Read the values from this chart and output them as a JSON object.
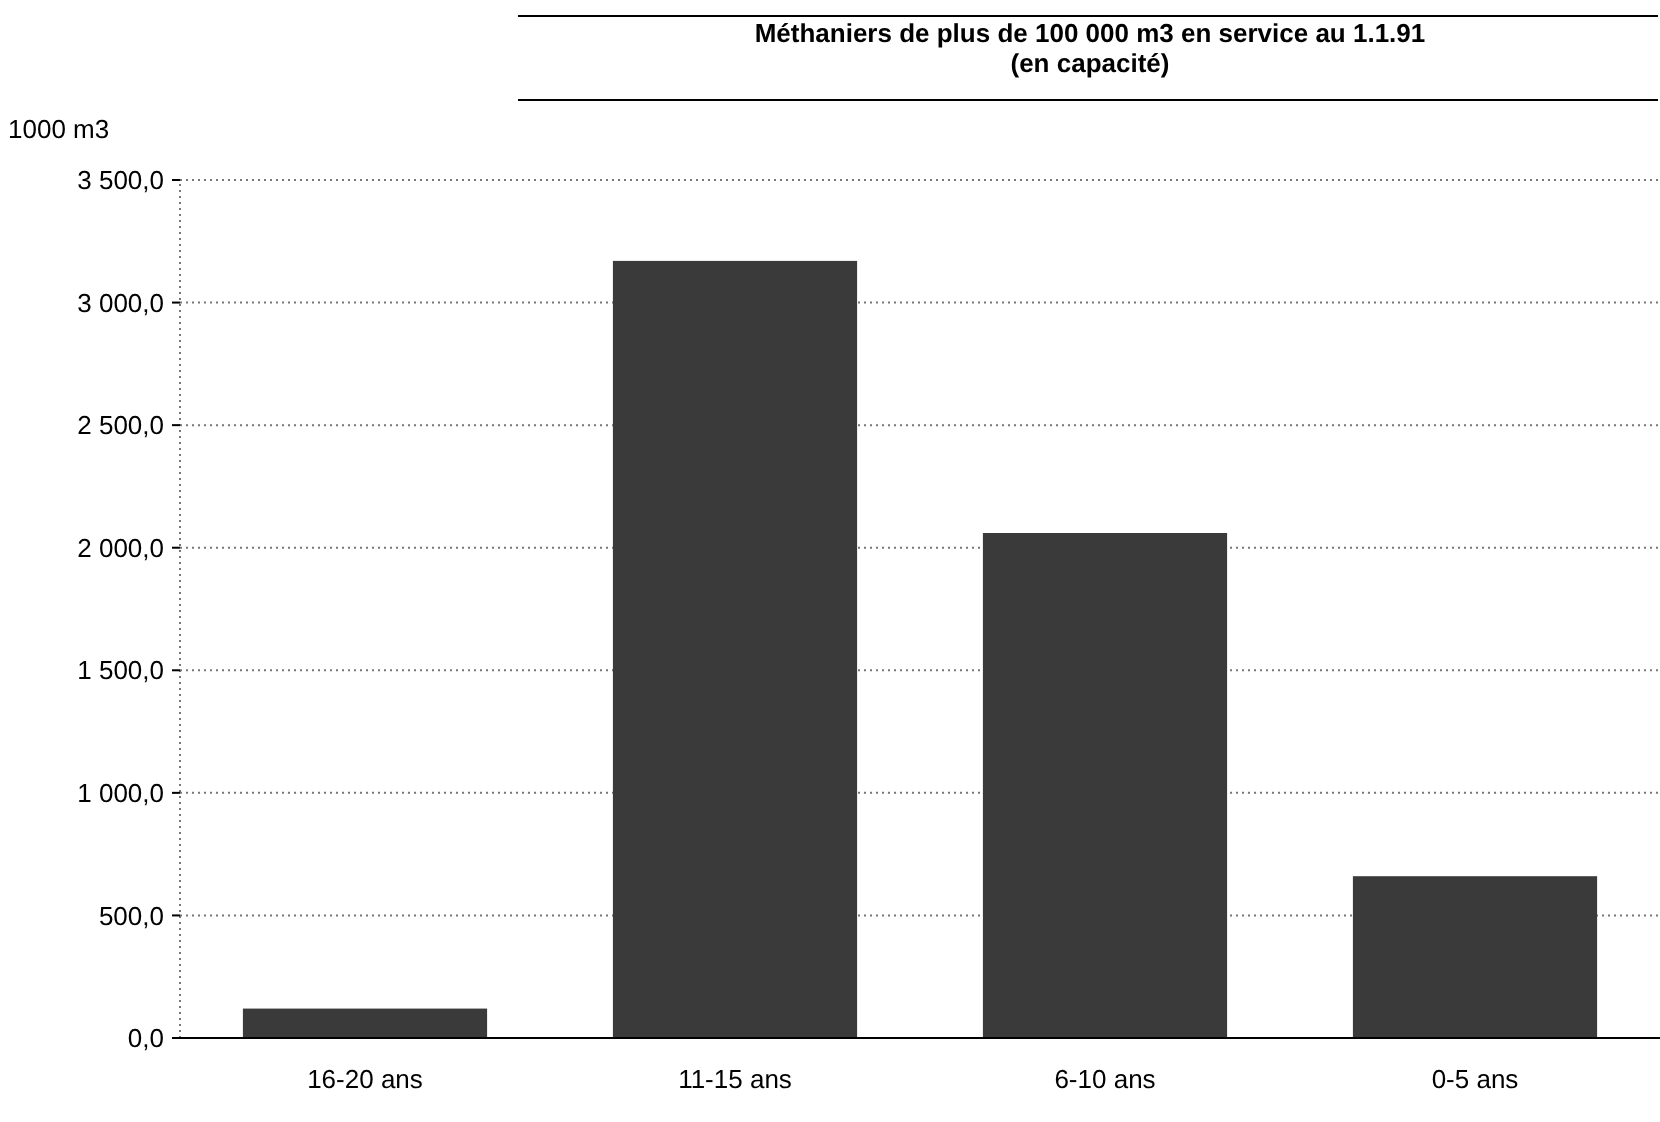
{
  "chart_data": {
    "type": "bar",
    "title": "Méthaniers de plus de 100 000 m3 en service au 1.1.91",
    "subtitle": "(en capacité)",
    "ylabel": "1000 m3",
    "categories": [
      "16-20 ans",
      "11-15 ans",
      "6-10 ans",
      "0-5 ans"
    ],
    "values": [
      120,
      3170,
      2060,
      660
    ],
    "color": "#3a3a3a",
    "ylim": [
      0,
      3500
    ],
    "yticks": [
      {
        "value": 0,
        "label": "0,0"
      },
      {
        "value": 500,
        "label": "500,0"
      },
      {
        "value": 1000,
        "label": "1 000,0"
      },
      {
        "value": 1500,
        "label": "1 500,0"
      },
      {
        "value": 2000,
        "label": "2 000,0"
      },
      {
        "value": 2500,
        "label": "2 500,0"
      },
      {
        "value": 3000,
        "label": "3 000,0"
      },
      {
        "value": 3500,
        "label": "3 500,0"
      }
    ],
    "grid": "y"
  }
}
